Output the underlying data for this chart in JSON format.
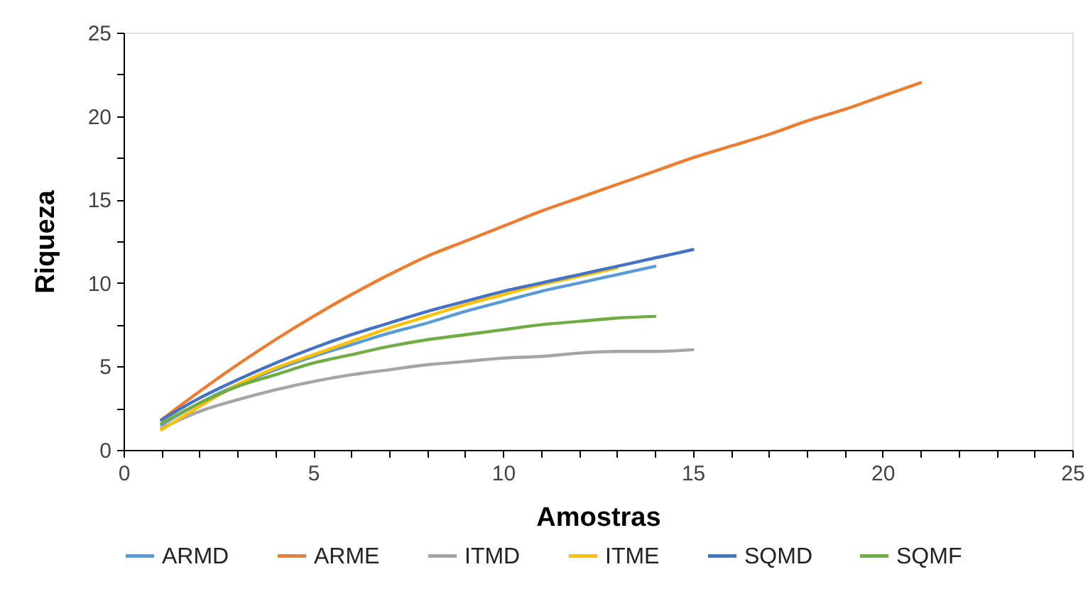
{
  "chart_data": {
    "type": "line",
    "xlabel": "Amostras",
    "ylabel": "Riqueza",
    "xlim": [
      0,
      25
    ],
    "ylim": [
      0,
      25
    ],
    "xticks": [
      0,
      {
        "value": 1,
        "label": null
      },
      {
        "value": 2,
        "label": null
      },
      {
        "value": 3,
        "label": null
      },
      {
        "value": 4,
        "label": null
      },
      5,
      {
        "value": 6,
        "label": null
      },
      {
        "value": 7,
        "label": null
      },
      {
        "value": 8,
        "label": null
      },
      {
        "value": 9,
        "label": null
      },
      10,
      {
        "value": 11,
        "label": null
      },
      {
        "value": 12,
        "label": null
      },
      {
        "value": 13,
        "label": null
      },
      {
        "value": 14,
        "label": null
      },
      15,
      {
        "value": 16,
        "label": null
      },
      {
        "value": 17,
        "label": null
      },
      {
        "value": 18,
        "label": null
      },
      {
        "value": 19,
        "label": null
      },
      20,
      {
        "value": 21,
        "label": null
      },
      {
        "value": 22,
        "label": null
      },
      {
        "value": 23,
        "label": null
      },
      {
        "value": 24,
        "label": null
      },
      25
    ],
    "yticks": [
      0,
      {
        "value": 2.5,
        "label": null
      },
      5,
      {
        "value": 7.5,
        "label": null
      },
      10,
      {
        "value": 12.5,
        "label": null
      },
      15,
      {
        "value": 17.5,
        "label": null
      },
      20,
      {
        "value": 22.5,
        "label": null
      },
      25
    ],
    "grid": false,
    "legend": "bottom",
    "series": [
      {
        "name": "ARMD",
        "color": "#5b9bd5",
        "x": [
          1,
          2,
          3,
          4,
          5,
          6,
          7,
          8,
          9,
          10,
          11,
          12,
          13,
          14
        ],
        "values": [
          1.5,
          2.8,
          3.9,
          4.8,
          5.6,
          6.3,
          7.0,
          7.6,
          8.3,
          8.9,
          9.5,
          10.0,
          10.5,
          11
        ]
      },
      {
        "name": "ARME",
        "color": "#ed7d31",
        "x": [
          1,
          2,
          3,
          4,
          5,
          6,
          7,
          8,
          9,
          10,
          11,
          12,
          13,
          14,
          15,
          16,
          17,
          18,
          19,
          20,
          21
        ],
        "values": [
          1.8,
          3.5,
          5.1,
          6.6,
          8.0,
          9.3,
          10.5,
          11.6,
          12.5,
          13.4,
          14.3,
          15.1,
          15.9,
          16.7,
          17.5,
          18.2,
          18.9,
          19.7,
          20.4,
          21.2,
          22
        ]
      },
      {
        "name": "ITMD",
        "color": "#a5a5a5",
        "x": [
          1,
          2,
          3,
          4,
          5,
          6,
          7,
          8,
          9,
          10,
          11,
          12,
          13,
          14,
          15
        ],
        "values": [
          1.3,
          2.3,
          3.0,
          3.6,
          4.1,
          4.5,
          4.8,
          5.1,
          5.3,
          5.5,
          5.6,
          5.8,
          5.9,
          5.9,
          6.0
        ]
      },
      {
        "name": "ITME",
        "color": "#ffc000",
        "x": [
          1,
          2,
          3,
          4,
          5,
          6,
          7,
          8,
          9,
          10,
          11,
          12,
          13
        ],
        "values": [
          1.2,
          2.6,
          3.9,
          4.9,
          5.7,
          6.5,
          7.3,
          8.0,
          8.7,
          9.3,
          9.9,
          10.4,
          10.9
        ]
      },
      {
        "name": "SQMD",
        "color": "#4472c4",
        "x": [
          1,
          2,
          3,
          4,
          5,
          6,
          7,
          8,
          9,
          10,
          11,
          12,
          13,
          14,
          15
        ],
        "values": [
          1.8,
          3.1,
          4.2,
          5.2,
          6.1,
          6.9,
          7.6,
          8.3,
          8.9,
          9.5,
          10.0,
          10.5,
          11.0,
          11.5,
          12
        ]
      },
      {
        "name": "SQMF",
        "color": "#70ad47",
        "x": [
          1,
          2,
          3,
          4,
          5,
          6,
          7,
          8,
          9,
          10,
          11,
          12,
          13,
          14
        ],
        "values": [
          1.6,
          2.8,
          3.8,
          4.5,
          5.2,
          5.7,
          6.2,
          6.6,
          6.9,
          7.2,
          7.5,
          7.7,
          7.9,
          8
        ]
      }
    ]
  }
}
